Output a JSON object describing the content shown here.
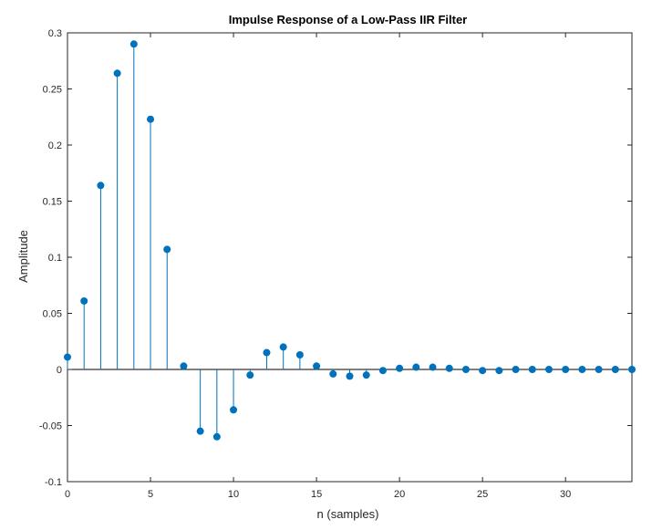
{
  "chart_data": {
    "type": "stem",
    "title": "Impulse Response of a Low-Pass IIR Filter",
    "xlabel": "n (samples)",
    "ylabel": "Amplitude",
    "xlim": [
      0,
      34
    ],
    "ylim": [
      -0.1,
      0.3
    ],
    "xticks": [
      0,
      5,
      10,
      15,
      20,
      25,
      30
    ],
    "yticks": [
      -0.1,
      -0.05,
      0,
      0.05,
      0.1,
      0.15,
      0.2,
      0.25,
      0.3
    ],
    "ytick_labels": [
      "-0.1",
      "-0.05",
      "0",
      "0.05",
      "0.1",
      "0.15",
      "0.2",
      "0.25",
      "0.3"
    ],
    "grid": false,
    "x": [
      0,
      1,
      2,
      3,
      4,
      5,
      6,
      7,
      8,
      9,
      10,
      11,
      12,
      13,
      14,
      15,
      16,
      17,
      18,
      19,
      20,
      21,
      22,
      23,
      24,
      25,
      26,
      27,
      28,
      29,
      30,
      31,
      32,
      33,
      34
    ],
    "values": [
      0.011,
      0.061,
      0.164,
      0.264,
      0.29,
      0.223,
      0.107,
      0.003,
      -0.055,
      -0.06,
      -0.036,
      -0.005,
      0.015,
      0.02,
      0.013,
      0.003,
      -0.004,
      -0.006,
      -0.005,
      -0.001,
      0.001,
      0.002,
      0.002,
      0.001,
      0.0,
      -0.001,
      -0.001,
      0.0,
      0.0,
      0.0,
      0.0,
      0.0,
      0.0,
      0.0,
      0.0
    ],
    "color": "#0072BD"
  }
}
